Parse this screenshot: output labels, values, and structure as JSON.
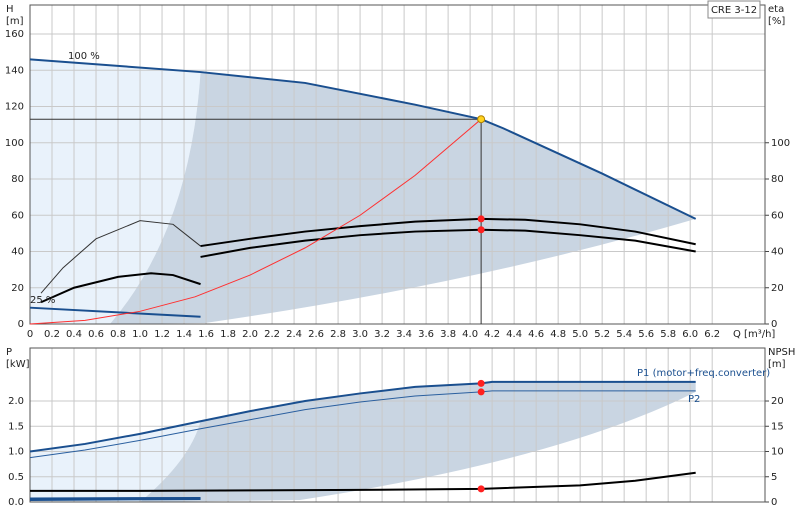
{
  "chart_data": [
    {
      "type": "line",
      "title": "CRE 3-12",
      "xlabel": "Q [m³/h]",
      "ylabel": [
        "H",
        "[m]"
      ],
      "y2label": [
        "eta",
        "[%]"
      ],
      "xlim": [
        0,
        6.68
      ],
      "xticks": [
        0,
        0.2,
        0.4,
        0.6,
        0.8,
        {
          "value": 1,
          "label": "1.0"
        },
        1.2,
        1.4,
        1.6,
        1.8,
        {
          "value": 2,
          "label": "2.0"
        },
        2.2,
        2.4,
        2.6,
        2.8,
        {
          "value": 3,
          "label": "3.0"
        },
        3.2,
        3.4,
        3.6,
        3.8,
        {
          "value": 4,
          "label": "4.0"
        },
        4.2,
        4.4,
        4.6,
        4.8,
        {
          "value": 5,
          "label": "5.0"
        },
        5.2,
        5.4,
        5.6,
        5.8,
        {
          "value": 6,
          "label": "6.0"
        },
        6.2
      ],
      "ylim": [
        0,
        176
      ],
      "yticks": [
        0,
        20,
        40,
        60,
        80,
        100,
        120,
        140,
        160
      ],
      "y2lim": [
        0,
        176
      ],
      "y2ticks": [
        0,
        20,
        40,
        60,
        80,
        100
      ],
      "grid": true,
      "crosshair": true,
      "annotations": [
        "100 %",
        "25 %"
      ],
      "series": [
        {
          "color": "#1a4f8f",
          "x": [
            0,
            1.55,
            2.5,
            3.5,
            4.1,
            4.3,
            5.2,
            6.05
          ],
          "values": [
            146,
            139,
            133,
            121,
            113,
            108,
            83,
            58
          ]
        },
        {
          "color": "#1a4f8f",
          "x": [
            0,
            1.55
          ],
          "values": [
            9,
            4
          ]
        },
        {
          "color": "#000000",
          "axis": "y2",
          "x": [
            1.55,
            2,
            2.5,
            3,
            3.5,
            4.1,
            4.5,
            5,
            5.5,
            6.05
          ],
          "values": [
            43,
            47,
            51,
            54,
            56.5,
            58,
            57.5,
            55,
            51,
            44
          ]
        },
        {
          "color": "#000000",
          "axis": "y2",
          "x": [
            1.55,
            2,
            2.5,
            3,
            3.5,
            4.1,
            4.5,
            5,
            5.5,
            6.05
          ],
          "values": [
            37,
            42,
            46,
            49,
            51,
            52,
            51.5,
            49,
            46,
            40
          ]
        },
        {
          "color": "#333333",
          "axis": "y2",
          "x": [
            0.1,
            0.3,
            0.6,
            1.0,
            1.3,
            1.55
          ],
          "values": [
            17,
            31,
            47,
            57,
            55,
            43
          ]
        },
        {
          "color": "#000000",
          "axis": "y2",
          "x": [
            0.1,
            0.4,
            0.8,
            1.1,
            1.3,
            1.55
          ],
          "values": [
            12,
            20,
            26,
            28,
            27,
            22
          ]
        },
        {
          "color": "#ff3030",
          "x": [
            0,
            0.5,
            1,
            1.5,
            2,
            2.5,
            3,
            3.5,
            4.1
          ],
          "values": [
            0,
            2,
            7,
            15,
            27,
            42,
            60,
            82,
            113
          ]
        }
      ],
      "markers": [
        {
          "x": 4.1,
          "value": 113,
          "color": "#ffd21f"
        },
        {
          "x": 4.1,
          "value": 58,
          "axis": "y2",
          "color": "#ff2020"
        },
        {
          "x": 4.1,
          "value": 52,
          "axis": "y2",
          "color": "#ff2020"
        }
      ]
    },
    {
      "type": "line",
      "ylabel": [
        "P",
        "[kW]"
      ],
      "y2label": [
        "NPSH",
        "[m]"
      ],
      "xlim": [
        0,
        6.68
      ],
      "xticks": [
        0,
        0.2,
        0.4,
        0.6,
        0.8,
        1,
        1.2,
        1.4,
        1.6,
        1.8,
        2,
        2.2,
        2.4,
        2.6,
        2.8,
        3,
        3.2,
        3.4,
        3.6,
        3.8,
        4,
        4.2,
        4.4,
        4.6,
        4.8,
        5,
        5.2,
        5.4,
        5.6,
        5.8,
        6,
        6.2
      ],
      "ylim": [
        0,
        3.05
      ],
      "yticks": [
        {
          "value": 0,
          "label": "0.0"
        },
        0.5,
        {
          "value": 1,
          "label": "1.0"
        },
        1.5,
        {
          "value": 2,
          "label": "2.0"
        }
      ],
      "y2lim": [
        0,
        30.5
      ],
      "y2ticks": [
        0,
        5,
        10,
        15,
        20
      ],
      "grid": true,
      "series": [
        {
          "name": "P1 (motor+freq.converter)",
          "color": "#1a4f8f",
          "x": [
            0,
            0.5,
            1,
            1.55,
            2,
            2.5,
            3,
            3.5,
            4.1,
            4.2,
            6.05
          ],
          "values": [
            1.0,
            1.15,
            1.35,
            1.6,
            1.8,
            2.0,
            2.15,
            2.28,
            2.35,
            2.38,
            2.38
          ]
        },
        {
          "name": "P2",
          "color": "#2a5f9f",
          "x": [
            0,
            0.5,
            1,
            1.55,
            2,
            2.5,
            3,
            3.5,
            4.1,
            4.2,
            6.05
          ],
          "values": [
            0.88,
            1.03,
            1.22,
            1.45,
            1.63,
            1.83,
            1.98,
            2.1,
            2.18,
            2.2,
            2.2
          ]
        },
        {
          "color": "#1a4f8f",
          "x": [
            0,
            1.55
          ],
          "values": [
            0.07,
            0.08
          ]
        },
        {
          "color": "#1a4f8f",
          "x": [
            0,
            1.55
          ],
          "values": [
            0.04,
            0.06
          ]
        },
        {
          "color": "#000000",
          "axis": "y2",
          "x": [
            0,
            1,
            2,
            3,
            4.1,
            5,
            5.5,
            6.05
          ],
          "values": [
            2.2,
            2.2,
            2.3,
            2.4,
            2.6,
            3.3,
            4.2,
            5.8
          ]
        }
      ],
      "markers": [
        {
          "x": 4.1,
          "value": 2.35,
          "color": "#ff2020"
        },
        {
          "x": 4.1,
          "value": 2.18,
          "color": "#ff2020"
        },
        {
          "x": 4.1,
          "value": 2.6,
          "axis": "y2",
          "color": "#ff2020"
        }
      ]
    }
  ]
}
